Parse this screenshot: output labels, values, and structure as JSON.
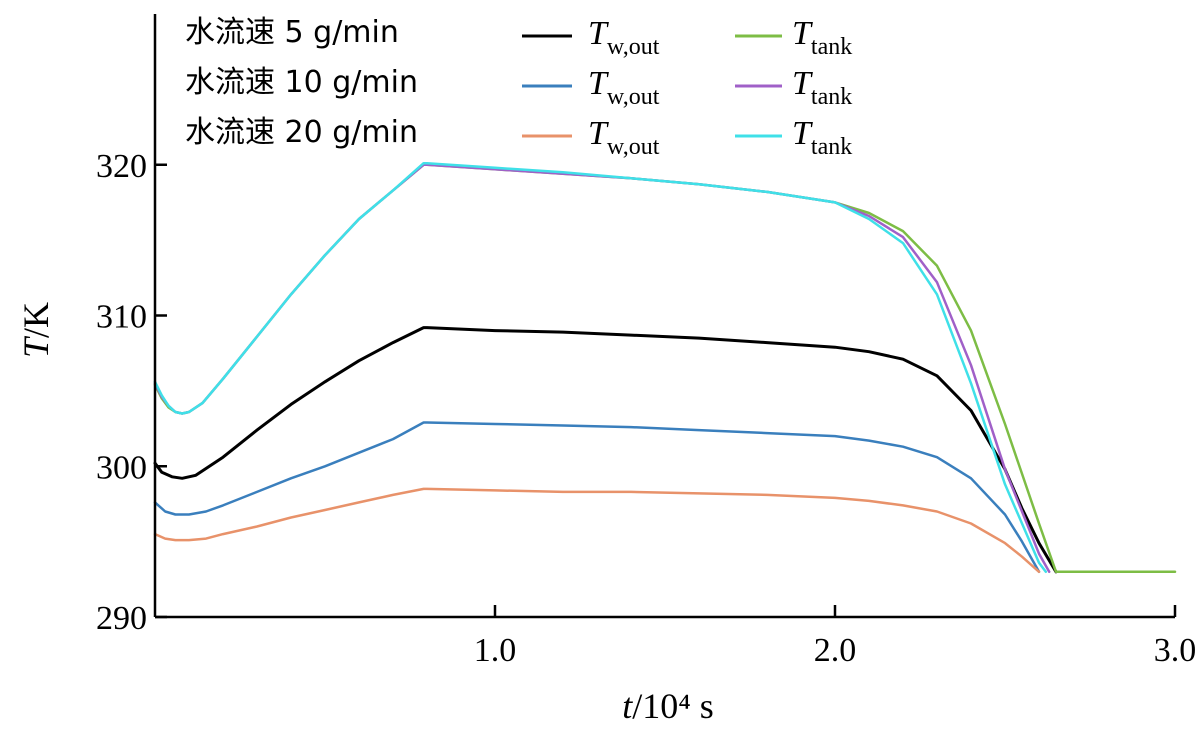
{
  "chart_data": {
    "type": "line",
    "xlabel_var": "t",
    "xlabel_unit": "/10⁴ s",
    "ylabel_var": "T",
    "ylabel_unit": "/K",
    "xlim": [
      0.0,
      3.0
    ],
    "ylim": [
      290,
      330
    ],
    "xticks": [
      1.0,
      2.0,
      3.0
    ],
    "xtick_labels": [
      "1.0",
      "2.0",
      "3.0"
    ],
    "yticks": [
      290,
      300,
      310,
      320
    ],
    "ytick_labels": [
      "290",
      "300",
      "310",
      "320"
    ],
    "grid": false,
    "legend": {
      "placement": "top-left",
      "rows": [
        {
          "label": "水流速 5 g/min",
          "left_name": "T",
          "left_sub": "w,out",
          "right_name": "T",
          "right_sub": "tank"
        },
        {
          "label": "水流速 10 g/min",
          "left_name": "T",
          "left_sub": "w,out",
          "right_name": "T",
          "right_sub": "tank"
        },
        {
          "label": "水流速 20 g/min",
          "left_name": "T",
          "left_sub": "w,out",
          "right_name": "T",
          "right_sub": "tank"
        }
      ]
    },
    "series": [
      {
        "name": "水流速 5 g/min T_w,out",
        "color": "#000000",
        "width": 3,
        "x": [
          0.0,
          0.02,
          0.05,
          0.08,
          0.12,
          0.2,
          0.3,
          0.4,
          0.5,
          0.6,
          0.7,
          0.79,
          0.8,
          1.0,
          1.2,
          1.4,
          1.6,
          1.8,
          2.0,
          2.1,
          2.2,
          2.3,
          2.4,
          2.5,
          2.55,
          2.6,
          2.65
        ],
        "y": [
          300.2,
          299.6,
          299.3,
          299.2,
          299.4,
          300.6,
          302.4,
          304.1,
          305.6,
          307.0,
          308.2,
          309.2,
          309.2,
          309.0,
          308.9,
          308.7,
          308.5,
          308.2,
          307.9,
          307.6,
          307.1,
          306.0,
          303.7,
          299.8,
          297.2,
          294.9,
          293.0
        ]
      },
      {
        "name": "水流速 10 g/min T_w,out",
        "color": "#3a7fbd",
        "width": 2.5,
        "x": [
          0.0,
          0.03,
          0.06,
          0.1,
          0.15,
          0.2,
          0.3,
          0.4,
          0.5,
          0.6,
          0.7,
          0.79,
          0.8,
          1.0,
          1.2,
          1.4,
          1.6,
          1.8,
          2.0,
          2.1,
          2.2,
          2.3,
          2.4,
          2.5,
          2.55,
          2.6
        ],
        "y": [
          297.6,
          297.0,
          296.8,
          296.8,
          297.0,
          297.4,
          298.3,
          299.2,
          300.0,
          300.9,
          301.8,
          302.9,
          302.9,
          302.8,
          302.7,
          302.6,
          302.4,
          302.2,
          302.0,
          301.7,
          301.3,
          300.6,
          299.2,
          296.8,
          295.0,
          293.0
        ]
      },
      {
        "name": "水流速 20 g/min T_w,out",
        "color": "#e8926a",
        "width": 2.5,
        "x": [
          0.0,
          0.03,
          0.06,
          0.1,
          0.15,
          0.2,
          0.3,
          0.4,
          0.5,
          0.6,
          0.7,
          0.79,
          0.8,
          1.0,
          1.2,
          1.4,
          1.6,
          1.8,
          2.0,
          2.1,
          2.2,
          2.3,
          2.4,
          2.5,
          2.55,
          2.6
        ],
        "y": [
          295.5,
          295.2,
          295.1,
          295.1,
          295.2,
          295.5,
          296.0,
          296.6,
          297.1,
          297.6,
          298.1,
          298.5,
          298.5,
          298.4,
          298.3,
          298.3,
          298.2,
          298.1,
          297.9,
          297.7,
          297.4,
          297.0,
          296.2,
          294.9,
          294.0,
          293.0
        ]
      },
      {
        "name": "水流速 5 g/min T_tank",
        "color": "#7dbd45",
        "width": 2.5,
        "x": [
          0.0,
          0.02,
          0.04,
          0.06,
          0.08,
          0.1,
          0.14,
          0.2,
          0.3,
          0.4,
          0.5,
          0.6,
          0.7,
          0.79,
          0.8,
          1.0,
          1.2,
          1.4,
          1.6,
          1.8,
          2.0,
          2.1,
          2.2,
          2.3,
          2.4,
          2.5,
          2.6,
          2.65,
          2.7,
          3.0
        ],
        "y": [
          305.4,
          304.5,
          303.9,
          303.6,
          303.5,
          303.6,
          304.2,
          305.8,
          308.6,
          311.4,
          314.0,
          316.4,
          318.3,
          320.0,
          320.0,
          319.7,
          319.4,
          319.1,
          318.7,
          318.2,
          317.5,
          316.8,
          315.6,
          313.3,
          309.0,
          302.8,
          296.2,
          293.0,
          293.0,
          293.0
        ]
      },
      {
        "name": "水流速 10 g/min T_tank",
        "color": "#a060c8",
        "width": 2.5,
        "x": [
          0.0,
          0.02,
          0.04,
          0.06,
          0.08,
          0.1,
          0.14,
          0.2,
          0.3,
          0.4,
          0.5,
          0.6,
          0.7,
          0.79,
          0.8,
          1.0,
          1.2,
          1.4,
          1.6,
          1.8,
          2.0,
          2.1,
          2.2,
          2.3,
          2.4,
          2.5,
          2.6,
          2.63
        ],
        "y": [
          305.5,
          304.6,
          304.0,
          303.6,
          303.5,
          303.6,
          304.2,
          305.8,
          308.6,
          311.4,
          314.0,
          316.4,
          318.3,
          320.0,
          320.0,
          319.7,
          319.4,
          319.1,
          318.7,
          318.2,
          317.5,
          316.6,
          315.2,
          312.2,
          306.7,
          299.8,
          294.2,
          293.0
        ]
      },
      {
        "name": "水流速 20 g/min T_tank",
        "color": "#3fe0e8",
        "width": 2.5,
        "x": [
          0.0,
          0.02,
          0.04,
          0.06,
          0.08,
          0.1,
          0.14,
          0.2,
          0.3,
          0.4,
          0.5,
          0.6,
          0.7,
          0.79,
          0.8,
          1.0,
          1.2,
          1.4,
          1.6,
          1.8,
          2.0,
          2.1,
          2.2,
          2.3,
          2.4,
          2.5,
          2.6,
          2.62
        ],
        "y": [
          305.6,
          304.7,
          304.0,
          303.6,
          303.5,
          303.6,
          304.2,
          305.8,
          308.6,
          311.4,
          314.0,
          316.4,
          318.3,
          320.1,
          320.1,
          319.8,
          319.5,
          319.1,
          318.7,
          318.2,
          317.5,
          316.4,
          314.8,
          311.4,
          305.5,
          298.8,
          293.6,
          293.0
        ]
      }
    ]
  }
}
